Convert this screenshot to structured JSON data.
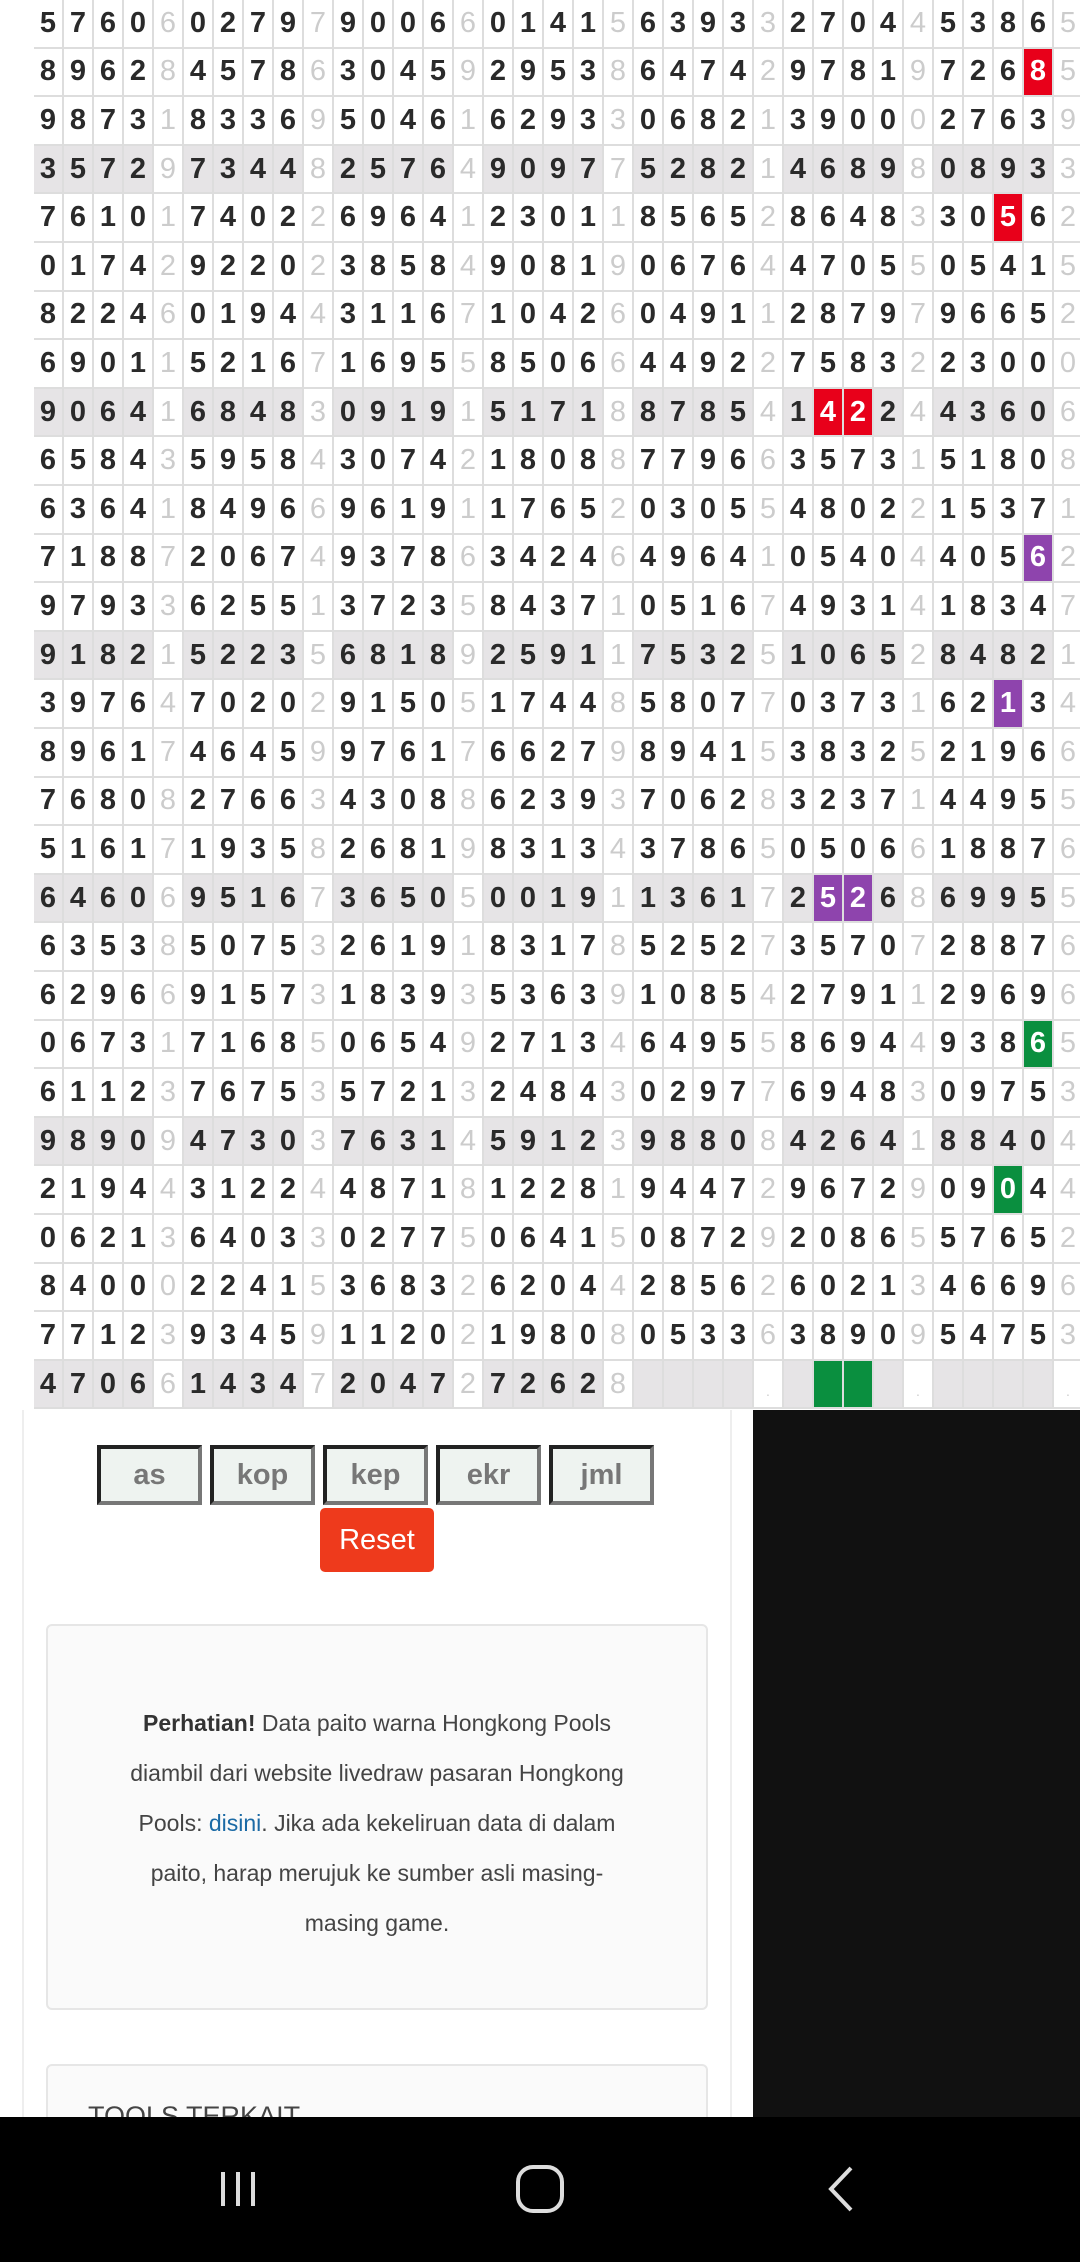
{
  "paito": {
    "rows": [
      "57606027979006601415639332704453865",
      "89628457863045929538647429781972685",
      "98731833695046162933068213900027639",
      "35729734482576490977528214689808933",
      "76101740226964123011856528648330562",
      "01742922023858490819067644705505415",
      "82246019443116710426049112879796652",
      "69011521671695585066449227583223000",
      "90641684830919151718878541422443606",
      "65843595843074218088779663573151808",
      "63641849669619117652030554802215371",
      "71887206749378634246496410540440562",
      "97933625513723584371051674931418347",
      "91821522356818925911753251065284821",
      "39764702029150517448580770373162134",
      "89617464599761766279894153832521966",
      "76808276634308862393706283237144955",
      "51617193582681983134378650506618876",
      "64606951673650500191136172526869955",
      "63538507532619183178525273570728876",
      "62966915731839353639108542791129696",
      "06731716850654927134649558694493865",
      "61123767535721324843029776948309753",
      "98909473037631459123988084264188404",
      "21944312244871812281944729672909044",
      "06213640330277506415087292086557652",
      "84000224153683262044285626021346696",
      "77123934591120219808053363890954753",
      "47066143472047272628____.____.____."
    ],
    "shaded_rows": [
      3,
      8,
      13,
      18,
      23,
      28
    ],
    "highlights": [
      {
        "row": 1,
        "col": 33,
        "color": "#e8001a"
      },
      {
        "row": 4,
        "col": 32,
        "color": "#e8001a"
      },
      {
        "row": 8,
        "col": 26,
        "color": "#e8001a"
      },
      {
        "row": 8,
        "col": 27,
        "color": "#e8001a"
      },
      {
        "row": 11,
        "col": 33,
        "color": "#8e44ad"
      },
      {
        "row": 14,
        "col": 32,
        "color": "#8e44ad"
      },
      {
        "row": 18,
        "col": 26,
        "color": "#8e44ad"
      },
      {
        "row": 18,
        "col": 27,
        "color": "#8e44ad"
      },
      {
        "row": 21,
        "col": 33,
        "color": "#0a8f3f"
      },
      {
        "row": 24,
        "col": 32,
        "color": "#0a8f3f"
      },
      {
        "row": 28,
        "col": 26,
        "color": "#0a8f3f"
      },
      {
        "row": 28,
        "col": 27,
        "color": "#0a8f3f"
      }
    ]
  },
  "controls": {
    "buttons": [
      "as",
      "kop",
      "kep",
      "ekr",
      "jml"
    ],
    "reset": "Reset"
  },
  "notice": {
    "bold": "Perhatian!",
    "text1": " Data paito warna Hongkong Pools diambil dari website livedraw pasaran Hongkong Pools: ",
    "link": "disini",
    "text2": ". Jika ada kekeliruan data di dalam paito, harap merujuk ke sumber asli masing-masing game."
  },
  "tools": {
    "title": "TOOLS TERKAIT"
  },
  "navbar": {
    "icons": [
      "recent-apps-icon",
      "home-icon",
      "back-icon"
    ]
  }
}
